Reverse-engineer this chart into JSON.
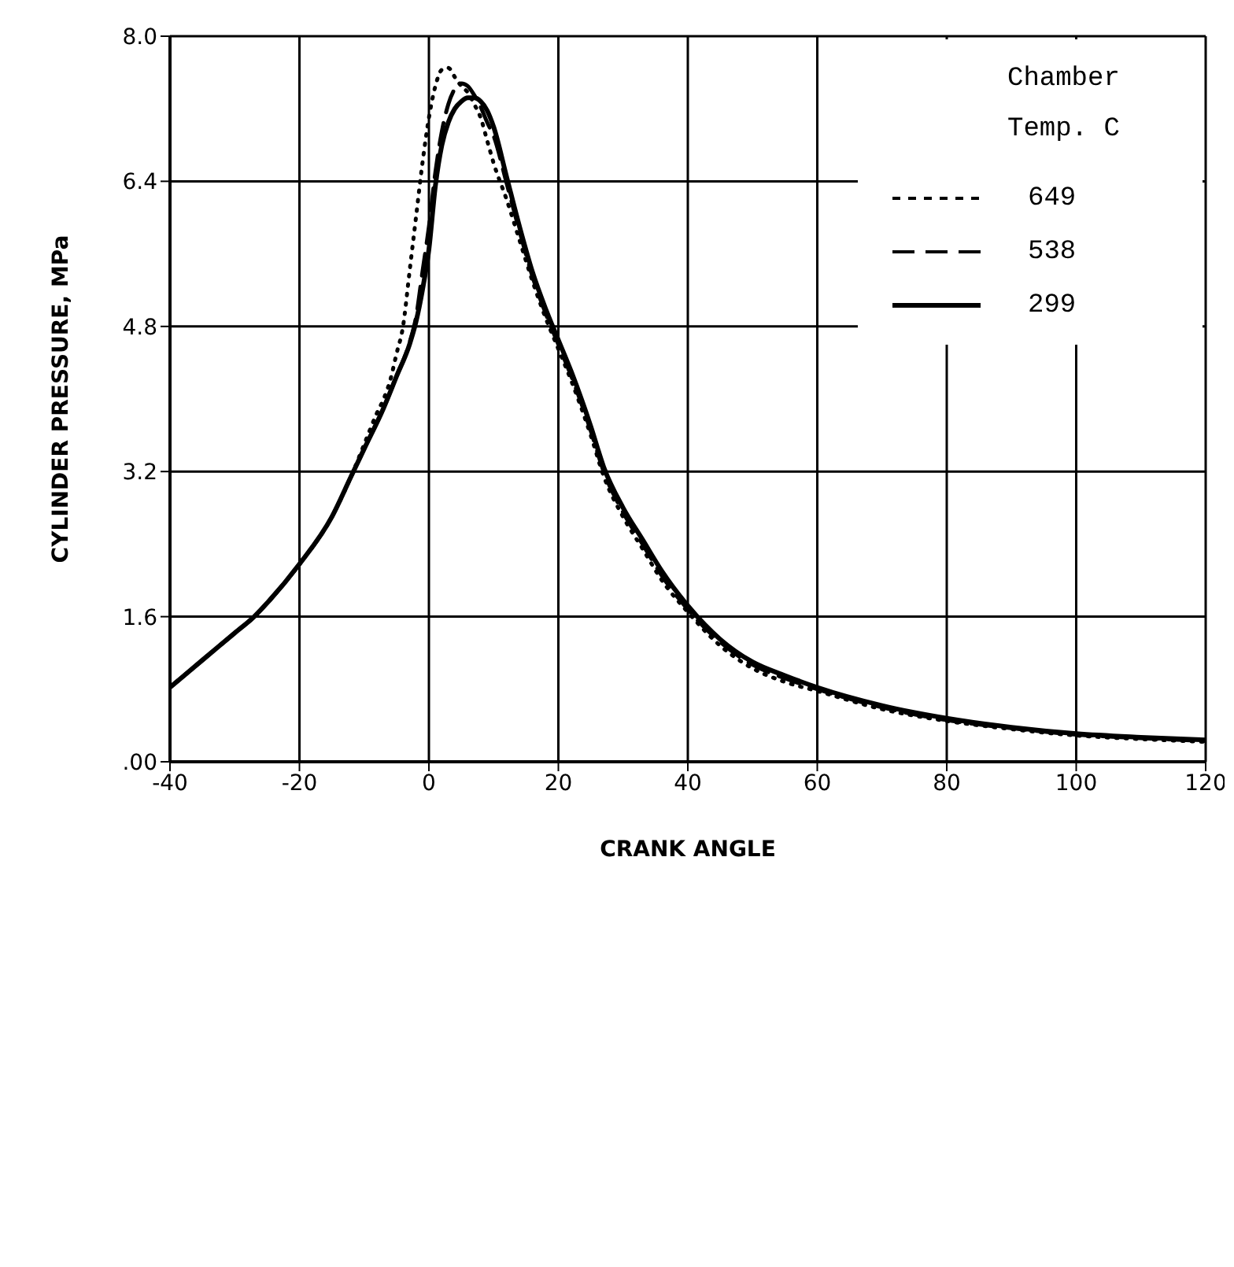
{
  "chart_data": {
    "type": "line",
    "xlabel": "CRANK ANGLE",
    "ylabel": "CYLINDER PRESSURE, MPa",
    "legend_title": "Chamber Temp. C",
    "legend": "top right",
    "grid": true,
    "marker": "none",
    "xlim": [
      -40,
      120
    ],
    "xticks": [
      -40,
      -20,
      0,
      20,
      40,
      60,
      80,
      100,
      120
    ],
    "ylim": [
      0,
      8
    ],
    "yticks": [
      {
        "value": 0,
        "label": ".00"
      },
      1.6,
      3.2,
      4.8,
      6.4,
      {
        "value": 8,
        "label": "8.0"
      }
    ],
    "series": [
      {
        "name": "649",
        "color": "#000000",
        "line_style": "dotted",
        "x": [
          -40,
          -35,
          -30,
          -27,
          -25,
          -20,
          -15,
          -12,
          -10,
          -8,
          -7,
          -6,
          -5,
          -4,
          -3,
          -2,
          -1,
          0,
          1,
          2,
          3,
          4,
          5,
          6,
          7,
          8,
          9,
          10,
          12,
          14,
          16,
          18,
          20,
          22,
          25,
          27,
          30,
          33,
          36,
          40,
          45,
          50,
          55,
          60,
          70,
          80,
          90,
          100,
          110,
          120
        ],
        "values": [
          0.82,
          1.12,
          1.42,
          1.6,
          1.75,
          2.18,
          2.7,
          3.15,
          3.5,
          3.85,
          4.0,
          4.2,
          4.5,
          4.8,
          5.4,
          6.0,
          6.6,
          7.1,
          7.45,
          7.63,
          7.65,
          7.55,
          7.45,
          7.38,
          7.25,
          7.1,
          6.85,
          6.6,
          6.2,
          5.75,
          5.3,
          4.9,
          4.55,
          4.2,
          3.6,
          3.15,
          2.7,
          2.35,
          2.0,
          1.65,
          1.28,
          1.03,
          0.88,
          0.78,
          0.58,
          0.45,
          0.36,
          0.29,
          0.25,
          0.22
        ]
      },
      {
        "name": "538",
        "color": "#000000",
        "line_style": "dashed",
        "x": [
          -40,
          -35,
          -30,
          -27,
          -25,
          -20,
          -15,
          -12,
          -10,
          -7,
          -5,
          -3,
          -2,
          -1,
          0,
          1,
          2,
          3,
          4,
          5,
          6,
          7,
          8,
          9,
          10,
          12,
          14,
          16,
          18,
          20,
          22,
          25,
          27,
          30,
          33,
          36,
          40,
          45,
          50,
          55,
          60,
          70,
          80,
          90,
          100,
          110,
          120
        ],
        "values": [
          0.82,
          1.12,
          1.42,
          1.6,
          1.75,
          2.18,
          2.7,
          3.15,
          3.45,
          3.9,
          4.25,
          4.62,
          4.9,
          5.4,
          5.9,
          6.5,
          6.95,
          7.25,
          7.42,
          7.48,
          7.45,
          7.35,
          7.22,
          7.05,
          6.9,
          6.38,
          5.85,
          5.35,
          4.95,
          4.6,
          4.25,
          3.65,
          3.2,
          2.75,
          2.4,
          2.05,
          1.68,
          1.32,
          1.07,
          0.92,
          0.8,
          0.6,
          0.46,
          0.37,
          0.3,
          0.26,
          0.23
        ]
      },
      {
        "name": "299",
        "color": "#000000",
        "line_style": "solid",
        "x": [
          -40,
          -35,
          -30,
          -27,
          -25,
          -20,
          -15,
          -12,
          -10,
          -7,
          -5,
          -3,
          -2,
          -1,
          0,
          1,
          2,
          3,
          4,
          5,
          6,
          7,
          8,
          9,
          10,
          12,
          14,
          16,
          18,
          20,
          22,
          25,
          27,
          30,
          33,
          36,
          40,
          45,
          50,
          55,
          60,
          70,
          80,
          90,
          100,
          110,
          120
        ],
        "values": [
          0.82,
          1.12,
          1.42,
          1.6,
          1.75,
          2.18,
          2.7,
          3.15,
          3.45,
          3.9,
          4.25,
          4.6,
          4.85,
          5.2,
          5.65,
          6.35,
          6.8,
          7.05,
          7.2,
          7.28,
          7.32,
          7.32,
          7.28,
          7.18,
          7.0,
          6.45,
          5.9,
          5.4,
          5.0,
          4.65,
          4.3,
          3.7,
          3.25,
          2.8,
          2.45,
          2.1,
          1.72,
          1.35,
          1.1,
          0.95,
          0.82,
          0.62,
          0.48,
          0.38,
          0.31,
          0.27,
          0.24
        ]
      }
    ]
  }
}
